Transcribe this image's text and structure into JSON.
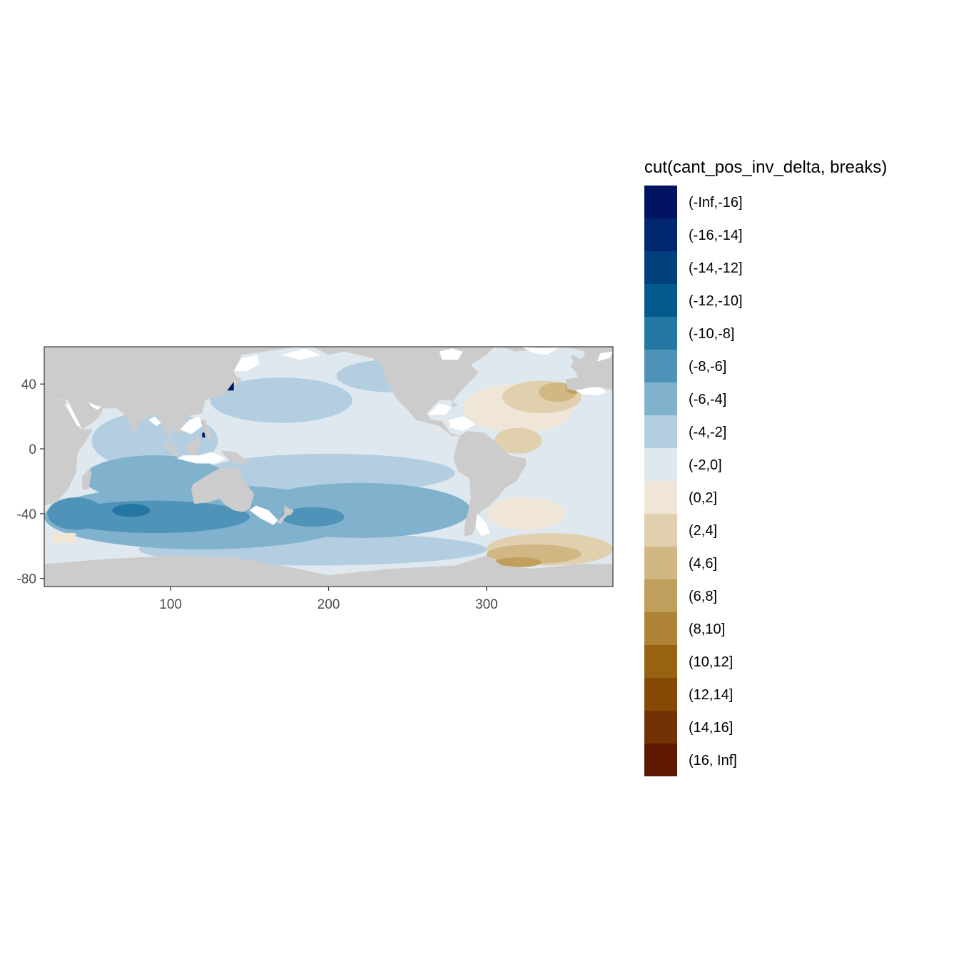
{
  "chart_data": {
    "type": "heatmap",
    "title": "",
    "xlabel": "",
    "ylabel": "",
    "xlim": [
      20,
      380
    ],
    "ylim": [
      -85,
      63
    ],
    "x_ticks": [
      100,
      200,
      300
    ],
    "y_ticks": [
      40,
      0,
      -40,
      -80
    ],
    "grid": false,
    "land_color": "#cccccc",
    "nodata_color": "#ffffff",
    "legend": {
      "title": "cut(cant_pos_inv_delta, breaks)",
      "placement": "right",
      "bins": [
        {
          "label": "(-Inf,-16]",
          "color": "#001260"
        },
        {
          "label": "(-16,-14]",
          "color": "#01286e"
        },
        {
          "label": "(-14,-12]",
          "color": "#023f7d"
        },
        {
          "label": "(-12,-10]",
          "color": "#045a8d"
        },
        {
          "label": "(-10,-8]",
          "color": "#2476a3"
        },
        {
          "label": "(-8,-6]",
          "color": "#5093b8"
        },
        {
          "label": "(-6,-4]",
          "color": "#80b1cd"
        },
        {
          "label": "(-4,-2]",
          "color": "#b3cee0"
        },
        {
          "label": "(-2,0]",
          "color": "#dfe8ee"
        },
        {
          "label": "(0,2]",
          "color": "#efe6d8"
        },
        {
          "label": "(2,4]",
          "color": "#e0d0ae"
        },
        {
          "label": "(4,6]",
          "color": "#d0b784"
        },
        {
          "label": "(6,8]",
          "color": "#c09e5c"
        },
        {
          "label": "(8,10]",
          "color": "#ae8335"
        },
        {
          "label": "(10,12]",
          "color": "#976313"
        },
        {
          "label": "(12,14]",
          "color": "#844a05"
        },
        {
          "label": "(14,16]",
          "color": "#723203"
        },
        {
          "label": "(16, Inf]",
          "color": "#5f1901"
        }
      ]
    },
    "regions": [
      {
        "bin": 8,
        "shape": "rect",
        "lon": [
          20,
          380
        ],
        "lat": [
          -85,
          63
        ]
      },
      {
        "bin": 7,
        "shape": "ellipse",
        "lon": 170,
        "lat": 30,
        "rlon": 45,
        "rlat": 14
      },
      {
        "bin": 7,
        "shape": "ellipse",
        "lon": 240,
        "lat": 45,
        "rlon": 35,
        "rlat": 10
      },
      {
        "bin": 7,
        "shape": "ellipse",
        "lon": 90,
        "lat": 5,
        "rlon": 40,
        "rlat": 18
      },
      {
        "bin": 7,
        "shape": "ellipse",
        "lon": 200,
        "lat": -15,
        "rlon": 80,
        "rlat": 12
      },
      {
        "bin": 7,
        "shape": "ellipse",
        "lon": 190,
        "lat": -62,
        "rlon": 110,
        "rlat": 10
      },
      {
        "bin": 6,
        "shape": "ellipse",
        "lon": 120,
        "lat": -42,
        "rlon": 100,
        "rlat": 20
      },
      {
        "bin": 6,
        "shape": "ellipse",
        "lon": 220,
        "lat": -38,
        "rlon": 70,
        "rlat": 17
      },
      {
        "bin": 6,
        "shape": "ellipse",
        "lon": 90,
        "lat": -18,
        "rlon": 45,
        "rlat": 14
      },
      {
        "bin": 5,
        "shape": "ellipse",
        "lon": 90,
        "lat": -42,
        "rlon": 60,
        "rlat": 10
      },
      {
        "bin": 5,
        "shape": "ellipse",
        "lon": 40,
        "lat": -40,
        "rlon": 18,
        "rlat": 10
      },
      {
        "bin": 5,
        "shape": "ellipse",
        "lon": 190,
        "lat": -42,
        "rlon": 20,
        "rlat": 6
      },
      {
        "bin": 4,
        "shape": "ellipse",
        "lon": 75,
        "lat": -38,
        "rlon": 12,
        "rlat": 4
      },
      {
        "bin": 8,
        "shape": "ellipse",
        "lon": 300,
        "lat": 10,
        "rlon": 40,
        "rlat": 20
      },
      {
        "bin": 8,
        "shape": "ellipse",
        "lon": 345,
        "lat": -20,
        "rlon": 30,
        "rlat": 25
      },
      {
        "bin": 9,
        "shape": "ellipse",
        "lon": 320,
        "lat": 25,
        "rlon": 35,
        "rlat": 15
      },
      {
        "bin": 9,
        "shape": "ellipse",
        "lon": 325,
        "lat": -40,
        "rlon": 25,
        "rlat": 10
      },
      {
        "bin": 10,
        "shape": "ellipse",
        "lon": 335,
        "lat": 32,
        "rlon": 25,
        "rlat": 10
      },
      {
        "bin": 10,
        "shape": "ellipse",
        "lon": 320,
        "lat": 5,
        "rlon": 15,
        "rlat": 8
      },
      {
        "bin": 11,
        "shape": "ellipse",
        "lon": 345,
        "lat": 35,
        "rlon": 12,
        "rlat": 6
      },
      {
        "bin": 12,
        "shape": "ellipse",
        "lon": 355,
        "lat": 38,
        "rlon": 5,
        "rlat": 4
      },
      {
        "bin": 10,
        "shape": "ellipse",
        "lon": 340,
        "lat": -62,
        "rlon": 40,
        "rlat": 10
      },
      {
        "bin": 11,
        "shape": "ellipse",
        "lon": 330,
        "lat": -65,
        "rlon": 30,
        "rlat": 6
      },
      {
        "bin": 12,
        "shape": "ellipse",
        "lon": 320,
        "lat": -70,
        "rlon": 15,
        "rlat": 3
      },
      {
        "bin": 9,
        "shape": "rect",
        "lon": [
          25,
          40
        ],
        "lat": [
          -58,
          -52
        ]
      },
      {
        "bin": 0,
        "shape": "rect",
        "lon": [
          131,
          140
        ],
        "lat": [
          36,
          45
        ]
      },
      {
        "bin": 0,
        "shape": "rect",
        "lon": [
          120,
          123
        ],
        "lat": [
          7,
          10
        ]
      }
    ]
  }
}
